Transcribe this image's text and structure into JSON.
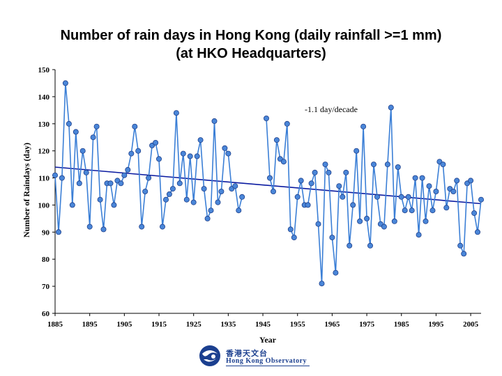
{
  "slide": {
    "title_line1": "Number of rain days in Hong Kong (daily rainfall >=1 mm)",
    "title_line2": "(at HKO Headquarters)"
  },
  "logo": {
    "chinese": "香港天文台",
    "english": "Hong Kong Observatory"
  },
  "colors": {
    "series_line": "#3b7fd6",
    "marker_fill": "#4a86d8",
    "marker_stroke": "#1e3f8a",
    "trend": "#0a1aa0",
    "axis": "#000000"
  },
  "chart_data": {
    "type": "line",
    "xlabel": "Year",
    "ylabel": "Number of Raindays (day)",
    "xlim": [
      1885,
      2008
    ],
    "ylim": [
      60,
      150
    ],
    "x_ticks": [
      1885,
      1895,
      1905,
      1915,
      1925,
      1935,
      1945,
      1955,
      1965,
      1975,
      1985,
      1995,
      2005
    ],
    "y_ticks": [
      60,
      70,
      80,
      90,
      100,
      110,
      120,
      130,
      140,
      150
    ],
    "grid": false,
    "annotation": "-1.1 day/decade",
    "trend": {
      "x": [
        1885,
        2008
      ],
      "y": [
        114,
        100.5
      ]
    },
    "series": [
      {
        "points": [
          [
            1885,
            111
          ],
          [
            1886,
            90
          ],
          [
            1887,
            110
          ],
          [
            1888,
            145
          ],
          [
            1889,
            130
          ],
          [
            1890,
            100
          ],
          [
            1891,
            127
          ],
          [
            1892,
            108
          ],
          [
            1893,
            120
          ],
          [
            1894,
            112
          ],
          [
            1895,
            92
          ],
          [
            1896,
            125
          ],
          [
            1897,
            129
          ],
          [
            1898,
            102
          ],
          [
            1899,
            91
          ],
          [
            1900,
            108
          ],
          [
            1901,
            108
          ],
          [
            1902,
            100
          ],
          [
            1903,
            109
          ],
          [
            1904,
            108
          ],
          [
            1905,
            111
          ],
          [
            1906,
            113
          ],
          [
            1907,
            119
          ],
          [
            1908,
            129
          ],
          [
            1909,
            120
          ],
          [
            1910,
            92
          ],
          [
            1911,
            105
          ],
          [
            1912,
            110
          ],
          [
            1913,
            122
          ],
          [
            1914,
            123
          ],
          [
            1915,
            117
          ],
          [
            1916,
            92
          ],
          [
            1917,
            102
          ],
          [
            1918,
            104
          ],
          [
            1919,
            106
          ],
          [
            1920,
            134
          ],
          [
            1921,
            108
          ],
          [
            1922,
            119
          ],
          [
            1923,
            102
          ],
          [
            1924,
            118
          ],
          [
            1925,
            101
          ],
          [
            1926,
            118
          ],
          [
            1927,
            124
          ],
          [
            1928,
            106
          ],
          [
            1929,
            95
          ],
          [
            1930,
            98
          ],
          [
            1931,
            131
          ],
          [
            1932,
            101
          ],
          [
            1933,
            105
          ],
          [
            1934,
            121
          ],
          [
            1935,
            119
          ],
          [
            1936,
            106
          ],
          [
            1937,
            107
          ],
          [
            1938,
            98
          ],
          [
            1939,
            103
          ],
          [
            1946,
            132
          ],
          [
            1947,
            110
          ],
          [
            1948,
            105
          ],
          [
            1949,
            124
          ],
          [
            1950,
            117
          ],
          [
            1951,
            116
          ],
          [
            1952,
            130
          ],
          [
            1953,
            91
          ],
          [
            1954,
            88
          ],
          [
            1955,
            103
          ],
          [
            1956,
            109
          ],
          [
            1957,
            100
          ],
          [
            1958,
            100
          ],
          [
            1959,
            108
          ],
          [
            1960,
            112
          ],
          [
            1961,
            93
          ],
          [
            1962,
            71
          ],
          [
            1963,
            115
          ],
          [
            1964,
            112
          ],
          [
            1965,
            88
          ],
          [
            1966,
            75
          ],
          [
            1967,
            107
          ],
          [
            1968,
            103
          ],
          [
            1969,
            112
          ],
          [
            1970,
            85
          ],
          [
            1971,
            100
          ],
          [
            1972,
            120
          ],
          [
            1973,
            94
          ],
          [
            1974,
            129
          ],
          [
            1975,
            95
          ],
          [
            1976,
            85
          ],
          [
            1977,
            115
          ],
          [
            1978,
            103
          ],
          [
            1979,
            93
          ],
          [
            1980,
            92
          ],
          [
            1981,
            115
          ],
          [
            1982,
            136
          ],
          [
            1983,
            94
          ],
          [
            1984,
            114
          ],
          [
            1985,
            103
          ],
          [
            1986,
            98
          ],
          [
            1987,
            103
          ],
          [
            1988,
            98
          ],
          [
            1989,
            110
          ],
          [
            1990,
            89
          ],
          [
            1991,
            110
          ],
          [
            1992,
            94
          ],
          [
            1993,
            107
          ],
          [
            1994,
            98
          ],
          [
            1995,
            105
          ],
          [
            1996,
            116
          ],
          [
            1997,
            115
          ],
          [
            1998,
            99
          ],
          [
            1999,
            106
          ],
          [
            2000,
            105
          ],
          [
            2001,
            109
          ],
          [
            2002,
            85
          ],
          [
            2003,
            82
          ],
          [
            2004,
            108
          ],
          [
            2005,
            109
          ],
          [
            2006,
            97
          ],
          [
            2007,
            90
          ],
          [
            2008,
            102
          ]
        ]
      }
    ]
  }
}
